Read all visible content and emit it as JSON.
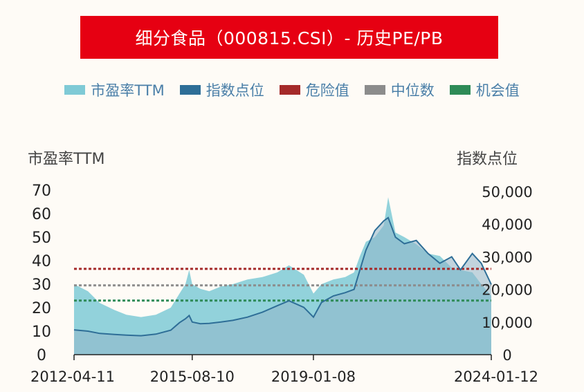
{
  "title": "细分食品（000815.CSI）- 历史PE/PB",
  "legend": [
    {
      "label": "市盈率TTM",
      "color": "#7fcad6"
    },
    {
      "label": "指数点位",
      "color": "#2e6e97"
    },
    {
      "label": "危险值",
      "color": "#a52a2a"
    },
    {
      "label": "中位数",
      "color": "#8c8c8c"
    },
    {
      "label": "机会值",
      "color": "#2e8b57"
    }
  ],
  "chart_data": {
    "type": "area",
    "left_axis_label": "市盈率TTM",
    "right_axis_label": "指数点位",
    "left_ylim": [
      0,
      70
    ],
    "left_ticks": [
      "0",
      "10",
      "20",
      "30",
      "40",
      "50",
      "60",
      "70"
    ],
    "right_ylim": [
      0,
      50000
    ],
    "right_ticks": [
      "0",
      "10,000",
      "20,000",
      "30,000",
      "40,000",
      "50,000"
    ],
    "x_ticks": [
      "2012-04-11",
      "2015-08-10",
      "2019-01-08",
      "2024-01-12"
    ],
    "x_range": [
      "2012-04-11",
      "2024-01-12"
    ],
    "reference_lines": [
      {
        "name": "危险值",
        "value": 36.5,
        "color": "#a52a2a"
      },
      {
        "name": "中位数",
        "value": 29.5,
        "color": "#8c8c8c"
      },
      {
        "name": "机会值",
        "value": 23,
        "color": "#2e8b57"
      }
    ],
    "series": [
      {
        "name": "市盈率TTM",
        "color": "#7fcad6",
        "x": [
          "2012-04-11",
          "2012-09-01",
          "2013-01-01",
          "2013-06-01",
          "2013-10-01",
          "2014-03-01",
          "2014-08-01",
          "2015-01-01",
          "2015-04-01",
          "2015-06-01",
          "2015-07-10",
          "2015-08-10",
          "2015-11-01",
          "2016-02-01",
          "2016-06-01",
          "2016-10-01",
          "2017-03-01",
          "2017-08-01",
          "2018-01-01",
          "2018-05-01",
          "2018-10-01",
          "2019-01-08",
          "2019-04-01",
          "2019-08-01",
          "2019-12-01",
          "2020-03-01",
          "2020-05-01",
          "2020-07-01",
          "2020-10-01",
          "2021-01-01",
          "2021-02-15",
          "2021-05-01",
          "2021-08-01",
          "2021-12-01",
          "2022-04-01",
          "2022-08-01",
          "2022-12-01",
          "2023-03-01",
          "2023-07-01",
          "2023-10-01",
          "2024-01-12"
        ],
        "y": [
          30,
          27,
          22,
          19,
          17,
          16,
          17,
          20,
          26,
          30,
          36,
          30,
          28,
          27,
          29,
          30,
          32,
          33,
          35,
          38,
          34,
          26,
          30,
          32,
          33,
          35,
          42,
          48,
          50,
          55,
          67,
          52,
          50,
          47,
          43,
          42,
          37,
          36,
          35,
          30,
          25
        ]
      },
      {
        "name": "指数点位",
        "color": "#2e6e97",
        "x": [
          "2012-04-11",
          "2012-09-01",
          "2013-01-01",
          "2013-06-01",
          "2013-10-01",
          "2014-03-01",
          "2014-08-01",
          "2015-01-01",
          "2015-04-01",
          "2015-06-01",
          "2015-07-10",
          "2015-08-10",
          "2015-11-01",
          "2016-02-01",
          "2016-06-01",
          "2016-10-01",
          "2017-03-01",
          "2017-08-01",
          "2018-01-01",
          "2018-05-01",
          "2018-10-01",
          "2019-01-08",
          "2019-04-01",
          "2019-08-01",
          "2019-12-01",
          "2020-03-01",
          "2020-05-01",
          "2020-07-01",
          "2020-10-01",
          "2021-01-01",
          "2021-02-15",
          "2021-05-01",
          "2021-08-01",
          "2021-12-01",
          "2022-04-01",
          "2022-08-01",
          "2022-12-01",
          "2023-03-01",
          "2023-07-01",
          "2023-10-01",
          "2024-01-12"
        ],
        "y": [
          7600,
          7200,
          6500,
          6200,
          6000,
          5800,
          6300,
          7500,
          9800,
          11000,
          12000,
          10000,
          9500,
          9600,
          10000,
          10500,
          11500,
          13000,
          15000,
          16500,
          14500,
          11500,
          16000,
          18000,
          19000,
          20000,
          26000,
          32000,
          38000,
          41000,
          42000,
          36000,
          34000,
          35000,
          31000,
          28000,
          30000,
          26000,
          31000,
          28000,
          21500
        ]
      }
    ]
  }
}
